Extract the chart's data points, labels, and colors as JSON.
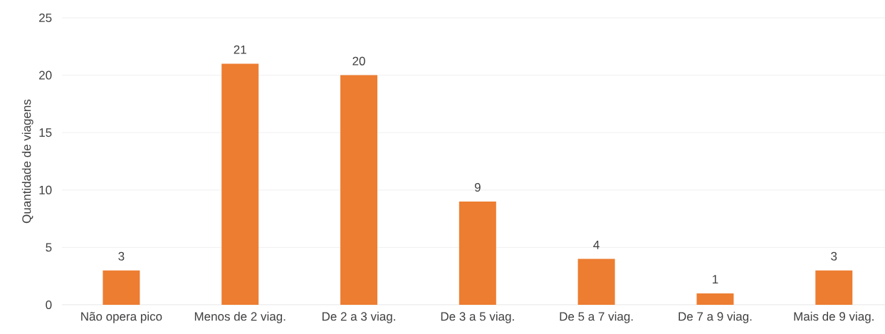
{
  "chart_data": {
    "type": "bar",
    "ylabel": "Quantidade de viagens",
    "categories": [
      "Não opera pico",
      "Menos de 2 viag.",
      "De 2 a 3 viag.",
      "De 3 a 5 viag.",
      "De 5 a 7 viag.",
      "De 7 a 9 viag.",
      "Mais de 9 viag."
    ],
    "values": [
      3,
      21,
      20,
      9,
      4,
      1,
      3
    ],
    "color": "#ed7d31",
    "ylim": [
      0,
      25
    ],
    "yticks": [
      0,
      5,
      10,
      15,
      20,
      25
    ],
    "grid": "y",
    "data_labels": true
  }
}
